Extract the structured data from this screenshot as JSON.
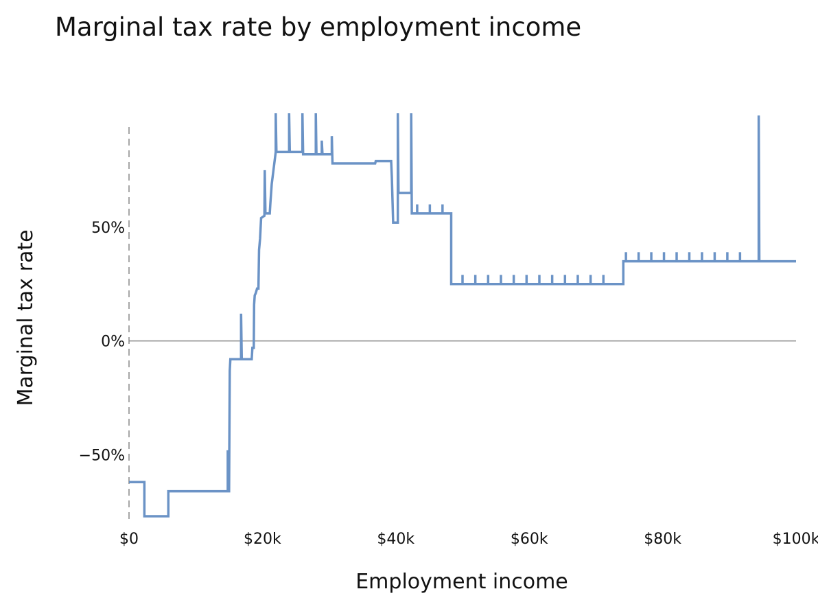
{
  "chart_data": {
    "type": "line",
    "title": "Marginal tax rate by employment income",
    "xlabel": "Employment income",
    "ylabel": "Marginal tax rate",
    "xlim": [
      0,
      100000
    ],
    "ylim": [
      -80,
      100
    ],
    "x_ticks": [
      {
        "value": 0,
        "label": "$0"
      },
      {
        "value": 20000,
        "label": "$20k"
      },
      {
        "value": 40000,
        "label": "$40k"
      },
      {
        "value": 60000,
        "label": "$60k"
      },
      {
        "value": 80000,
        "label": "$80k"
      },
      {
        "value": 100000,
        "label": "$100k"
      }
    ],
    "y_ticks": [
      {
        "value": 50,
        "label": "50%"
      },
      {
        "value": 0,
        "label": "0%"
      },
      {
        "value": -50,
        "label": "−50%"
      }
    ],
    "grid": false,
    "zero_line": true,
    "y_axis_dashed": true,
    "line_color": "#6b93c6",
    "zero_line_color": "#888888",
    "series": [
      {
        "points": [
          [
            0,
            -62
          ],
          [
            2300,
            -62
          ],
          [
            2300,
            -77
          ],
          [
            5900,
            -77
          ],
          [
            5900,
            -66
          ],
          [
            14800,
            -66
          ],
          [
            14800,
            -48
          ],
          [
            14950,
            -66
          ],
          [
            15000,
            -66
          ],
          [
            15100,
            -13
          ],
          [
            15200,
            -8
          ],
          [
            16800,
            -8
          ],
          [
            16800,
            12
          ],
          [
            16900,
            -8
          ],
          [
            18400,
            -8
          ],
          [
            18500,
            -3
          ],
          [
            18700,
            -3
          ],
          [
            18750,
            16
          ],
          [
            18850,
            20
          ],
          [
            19000,
            21
          ],
          [
            19200,
            23
          ],
          [
            19400,
            23
          ],
          [
            19500,
            40
          ],
          [
            19650,
            45
          ],
          [
            19800,
            54
          ],
          [
            20300,
            55
          ],
          [
            20350,
            75
          ],
          [
            20450,
            56
          ],
          [
            21100,
            56
          ],
          [
            21200,
            61
          ],
          [
            21400,
            69
          ],
          [
            22000,
            83
          ],
          [
            22000,
            100
          ],
          [
            22100,
            83
          ],
          [
            24000,
            83
          ],
          [
            24000,
            100
          ],
          [
            24100,
            83
          ],
          [
            26000,
            83
          ],
          [
            26000,
            100
          ],
          [
            26100,
            82
          ],
          [
            28000,
            82
          ],
          [
            28000,
            100
          ],
          [
            28100,
            82
          ],
          [
            28900,
            82
          ],
          [
            28900,
            88
          ],
          [
            29000,
            82
          ],
          [
            30400,
            82
          ],
          [
            30400,
            90
          ],
          [
            30500,
            78
          ],
          [
            36900,
            78
          ],
          [
            37000,
            79
          ],
          [
            39300,
            79
          ],
          [
            39400,
            72
          ],
          [
            39600,
            52
          ],
          [
            40300,
            52
          ],
          [
            40300,
            100
          ],
          [
            40400,
            65
          ],
          [
            42300,
            65
          ],
          [
            42300,
            100
          ],
          [
            42400,
            56
          ],
          [
            48300,
            56
          ],
          [
            48300,
            25
          ],
          [
            74100,
            25
          ],
          [
            74100,
            35
          ],
          [
            94400,
            35
          ],
          [
            94400,
            99
          ],
          [
            94500,
            35
          ],
          [
            100000,
            35
          ]
        ]
      }
    ],
    "comb_teeth": [
      {
        "start": 50000,
        "end": 72500,
        "step": 1920,
        "base": 25,
        "top": 29
      },
      {
        "start": 74500,
        "end": 93000,
        "step": 1900,
        "base": 35,
        "top": 39
      },
      {
        "start": 43200,
        "end": 47200,
        "step": 1900,
        "base": 56,
        "top": 60
      }
    ]
  }
}
